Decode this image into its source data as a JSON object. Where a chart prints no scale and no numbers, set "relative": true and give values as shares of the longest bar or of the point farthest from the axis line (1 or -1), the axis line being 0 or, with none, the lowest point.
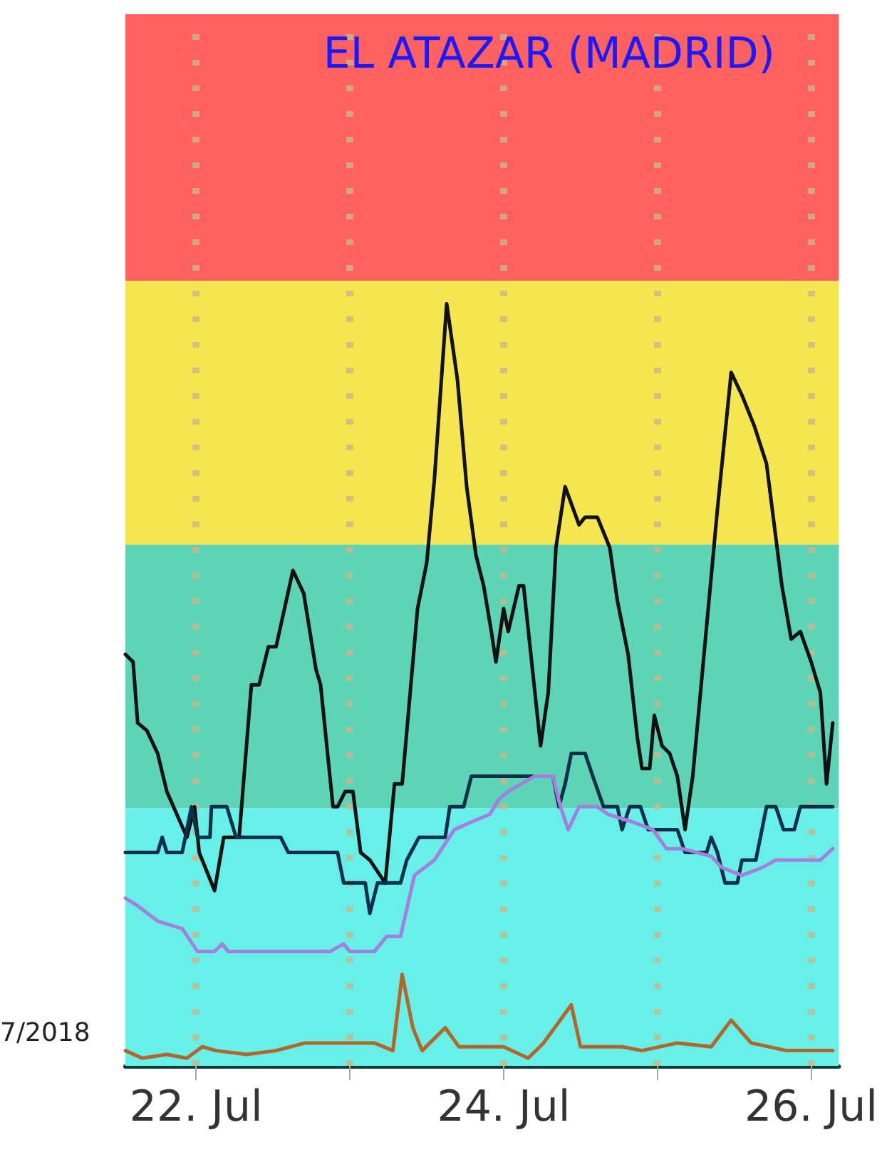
{
  "chart_data": {
    "type": "line",
    "title": "EL ATAZAR (MADRID)",
    "relative": true,
    "marker": "none",
    "line_style": "solid",
    "grid": "x",
    "xlim": [
      "--07-21T12:58",
      "--07-26T04:19"
    ],
    "xticks": [
      {
        "value": "--07-22",
        "label": "22. Jul"
      },
      {
        "value": "--07-23",
        "label": null
      },
      {
        "value": "--07-24",
        "label": "24. Jul"
      },
      {
        "value": "--07-25",
        "label": null
      },
      {
        "value": "--07-26",
        "label": "26. Jul"
      }
    ],
    "annotations": [
      "7/2018"
    ],
    "bands": [
      {
        "axis": "y",
        "from": 1.03,
        "to": 1.38,
        "label": null,
        "color": "#ff6060"
      },
      {
        "axis": "y",
        "from": 0.684,
        "to": 1.03,
        "label": null,
        "color": "#f5e64f"
      },
      {
        "axis": "y",
        "from": 0.338,
        "to": 0.684,
        "label": null,
        "color": "#5dd4b5"
      },
      {
        "axis": "y",
        "from": 0,
        "to": 0.338,
        "label": null,
        "color": "#66f0e8"
      }
    ],
    "series": [
      {
        "color": "#111111",
        "x": [
          "--07-21T12:58",
          "--07-21T14:10",
          "--07-21T14:53",
          "--07-21T16:19",
          "--07-21T18:00",
          "--07-21T19:26",
          "--07-21T22:34",
          "--07-21T23:46",
          "--07-22T00:29",
          "--07-22T02:53",
          "--07-22T04:19",
          "--07-22T06:43",
          "--07-22T08:38",
          "--07-22T09:50",
          "--07-22T11:17",
          "--07-22T12:29",
          "--07-22T15:07",
          "--07-22T16:48",
          "--07-22T18:43",
          "--07-22T19:26",
          "--07-22T21:22",
          "--07-22T22:05",
          "--07-22T23:17",
          "--07-23T00:29",
          "--07-23T01:41",
          "--07-23T03:07",
          "--07-23T05:31",
          "--07-23T06:58",
          "--07-23T08:10",
          "--07-23T10:34",
          "--07-23T12:00",
          "--07-23T13:12",
          "--07-23T15:07",
          "--07-23T16:48",
          "--07-23T18:14",
          "--07-23T19:41",
          "--07-23T20:53",
          "--07-23T22:05",
          "--07-23T22:48",
          "--07-24T00:00",
          "--07-24T00:43",
          "--07-24T02:24",
          "--07-24T03:07",
          "--07-24T05:46",
          "--07-24T06:58",
          "--07-24T08:10",
          "--07-24T09:36",
          "--07-24T11:46",
          "--07-24T12:43",
          "--07-24T14:38",
          "--07-24T16:34",
          "--07-24T17:46",
          "--07-24T19:26",
          "--07-24T20:53",
          "--07-24T21:36",
          "--07-24T22:48",
          "--07-24T23:31",
          "--07-25T00:43",
          "--07-25T01:55",
          "--07-25T03:07",
          "--07-25T04:19",
          "--07-25T05:31",
          "--07-25T09:22",
          "--07-25T11:31",
          "--07-25T13:12",
          "--07-25T15:07",
          "--07-25T17:02",
          "--07-25T19:26",
          "--07-25T20:53",
          "--07-25T22:19",
          "--07-26T00:00",
          "--07-26T01:26",
          "--07-26T02:24",
          "--07-26T03:22"
        ],
        "values": [
          0.54,
          0.53,
          0.45,
          0.44,
          0.41,
          0.36,
          0.3,
          0.34,
          0.28,
          0.23,
          0.3,
          0.3,
          0.5,
          0.5,
          0.55,
          0.55,
          0.65,
          0.62,
          0.52,
          0.5,
          0.34,
          0.34,
          0.36,
          0.36,
          0.28,
          0.27,
          0.24,
          0.37,
          0.37,
          0.6,
          0.66,
          0.77,
          1.0,
          0.9,
          0.76,
          0.67,
          0.63,
          0.57,
          0.53,
          0.6,
          0.57,
          0.63,
          0.63,
          0.42,
          0.49,
          0.68,
          0.76,
          0.71,
          0.72,
          0.72,
          0.68,
          0.61,
          0.54,
          0.43,
          0.39,
          0.39,
          0.46,
          0.42,
          0.41,
          0.38,
          0.31,
          0.38,
          0.73,
          0.91,
          0.88,
          0.84,
          0.79,
          0.63,
          0.56,
          0.57,
          0.53,
          0.49,
          0.37,
          0.45
        ]
      },
      {
        "color": "#0d2f4a",
        "x": [
          "--07-21T12:58",
          "--07-21T18:00",
          "--07-21T18:43",
          "--07-21T19:26",
          "--07-21T21:50",
          "--07-21T23:17",
          "--07-22T00:14",
          "--07-22T02:10",
          "--07-22T02:24",
          "--07-22T04:48",
          "--07-22T06:14",
          "--07-22T13:12",
          "--07-22T14:24",
          "--07-22T22:05",
          "--07-22T23:02",
          "--07-23T02:24",
          "--07-23T03:07",
          "--07-23T04:19",
          "--07-23T07:55",
          "--07-23T08:53",
          "--07-23T10:48",
          "--07-23T14:53",
          "--07-23T15:36",
          "--07-23T17:46",
          "--07-23T18:58",
          "--07-24T07:41",
          "--07-24T08:38",
          "--07-24T09:36",
          "--07-24T10:34",
          "--07-24T12:43",
          "--07-24T13:55",
          "--07-24T15:36",
          "--07-24T17:46",
          "--07-24T18:29",
          "--07-24T19:41",
          "--07-24T21:22",
          "--07-24T22:34",
          "--07-25T03:07",
          "--07-25T04:19",
          "--07-25T07:41",
          "--07-25T08:24",
          "--07-25T09:22",
          "--07-25T10:34",
          "--07-25T12:29",
          "--07-25T13:12",
          "--07-25T15:22",
          "--07-25T17:02",
          "--07-25T18:29",
          "--07-25T19:41",
          "--07-25T21:22",
          "--07-25T22:19",
          "--07-26T03:22"
        ],
        "values": [
          0.28,
          0.28,
          0.3,
          0.28,
          0.28,
          0.34,
          0.3,
          0.3,
          0.34,
          0.34,
          0.3,
          0.3,
          0.28,
          0.28,
          0.24,
          0.24,
          0.2,
          0.24,
          0.24,
          0.27,
          0.3,
          0.3,
          0.34,
          0.34,
          0.38,
          0.38,
          0.34,
          0.37,
          0.41,
          0.41,
          0.38,
          0.34,
          0.34,
          0.31,
          0.34,
          0.34,
          0.31,
          0.31,
          0.28,
          0.28,
          0.3,
          0.28,
          0.24,
          0.24,
          0.27,
          0.27,
          0.34,
          0.34,
          0.31,
          0.31,
          0.34,
          0.34
        ]
      },
      {
        "color": "#a57fe0",
        "x": [
          "--07-21T12:58",
          "--07-21T14:53",
          "--07-21T18:00",
          "--07-21T21:50",
          "--07-22T00:14",
          "--07-22T02:53",
          "--07-22T04:05",
          "--07-22T05:02",
          "--07-22T20:53",
          "--07-22T23:02",
          "--07-23T00:00",
          "--07-23T03:50",
          "--07-23T05:46",
          "--07-23T07:55",
          "--07-23T10:05",
          "--07-23T13:12",
          "--07-23T16:19",
          "--07-23T18:58",
          "--07-23T21:50",
          "--07-23T23:17",
          "--07-24T00:43",
          "--07-24T04:48",
          "--07-24T07:41",
          "--07-24T08:53",
          "--07-24T10:05",
          "--07-24T11:46",
          "--07-24T14:38",
          "--07-24T16:19",
          "--07-24T20:10",
          "--07-24T23:17",
          "--07-25T01:26",
          "--07-25T03:50",
          "--07-25T08:24",
          "--07-25T10:05",
          "--07-25T13:12",
          "--07-25T16:19",
          "--07-25T18:29",
          "--07-26T01:26",
          "--07-26T03:22"
        ],
        "values": [
          0.22,
          0.21,
          0.19,
          0.18,
          0.15,
          0.15,
          0.16,
          0.15,
          0.15,
          0.16,
          0.15,
          0.15,
          0.17,
          0.17,
          0.25,
          0.27,
          0.31,
          0.32,
          0.33,
          0.35,
          0.36,
          0.38,
          0.38,
          0.34,
          0.31,
          0.34,
          0.34,
          0.33,
          0.32,
          0.31,
          0.285,
          0.285,
          0.275,
          0.26,
          0.25,
          0.26,
          0.27,
          0.27,
          0.285
        ]
      },
      {
        "color": "#b5652a",
        "x": [
          "--07-21T12:58",
          "--07-21T15:36",
          "--07-21T19:26",
          "--07-21T22:34",
          "--07-22T00:58",
          "--07-22T03:07",
          "--07-22T07:55",
          "--07-22T12:29",
          "--07-22T17:02",
          "--07-22T20:10",
          "--07-23T00:00",
          "--07-23T03:50",
          "--07-23T06:43",
          "--07-23T08:10",
          "--07-23T09:50",
          "--07-23T11:17",
          "--07-23T14:53",
          "--07-23T17:02",
          "--07-24T00:00",
          "--07-24T03:50",
          "--07-24T06:14",
          "--07-24T10:34",
          "--07-24T12:00",
          "--07-24T18:29",
          "--07-24T21:36",
          "--07-25T03:07",
          "--07-25T08:24",
          "--07-25T11:31",
          "--07-25T14:38",
          "--07-25T20:10",
          "--07-26T03:22"
        ],
        "values": [
          0.02,
          0.01,
          0.015,
          0.01,
          0.025,
          0.02,
          0.015,
          0.02,
          0.03,
          0.03,
          0.03,
          0.03,
          0.02,
          0.12,
          0.05,
          0.02,
          0.05,
          0.025,
          0.025,
          0.01,
          0.03,
          0.08,
          0.025,
          0.025,
          0.02,
          0.03,
          0.025,
          0.06,
          0.03,
          0.02,
          0.02
        ]
      }
    ]
  }
}
